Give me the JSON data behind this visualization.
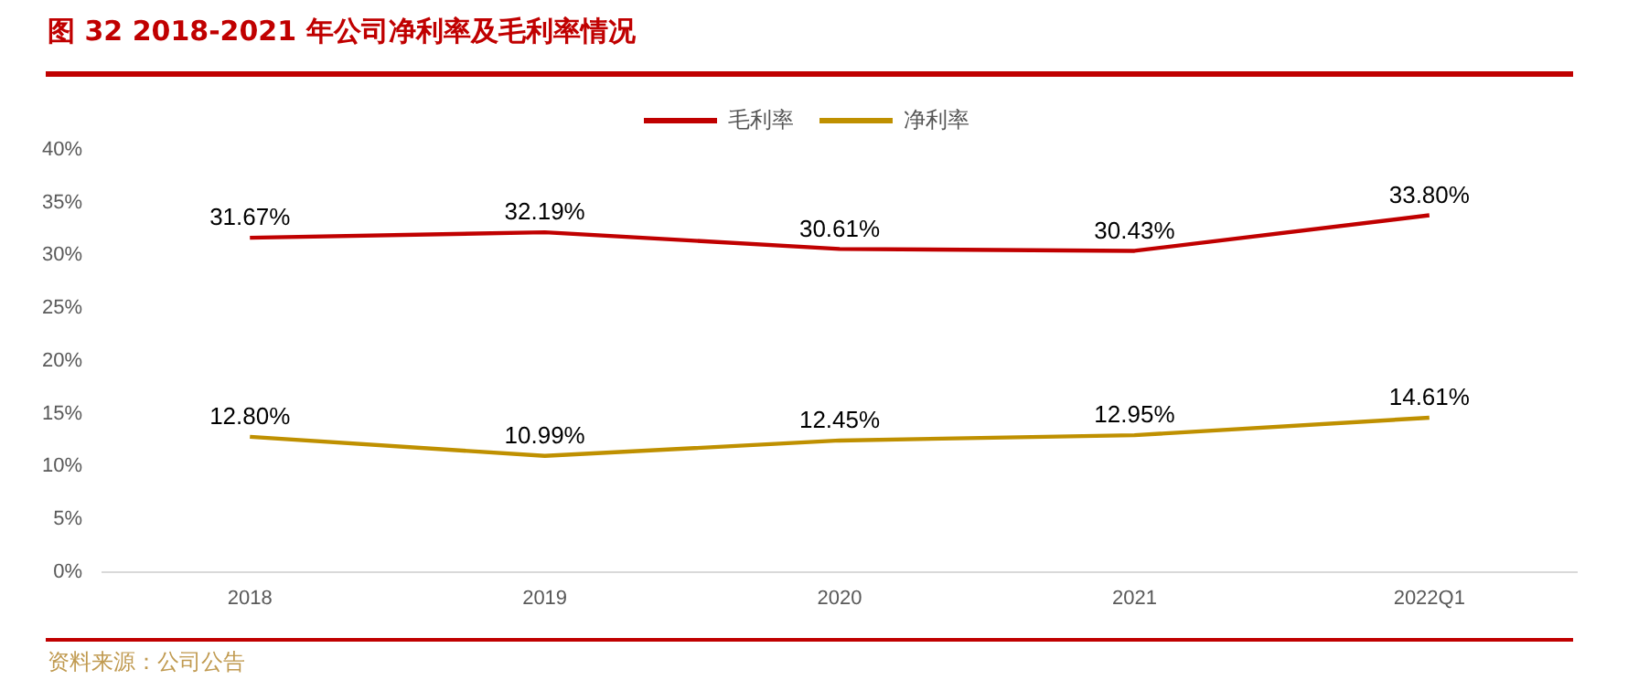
{
  "chart_data": {
    "type": "line",
    "title": "图 32 2018-2021 年公司净利率及毛利率情况",
    "categories": [
      "2018",
      "2019",
      "2020",
      "2021",
      "2022Q1"
    ],
    "series": [
      {
        "name": "毛利率",
        "color": "#c00000",
        "values": [
          31.67,
          32.19,
          30.61,
          30.43,
          33.8
        ],
        "value_labels": [
          "31.67%",
          "32.19%",
          "30.61%",
          "30.43%",
          "33.80%"
        ]
      },
      {
        "name": "净利率",
        "color": "#bf9000",
        "values": [
          12.8,
          10.99,
          12.45,
          12.95,
          14.61
        ],
        "value_labels": [
          "12.80%",
          "10.99%",
          "12.45%",
          "12.95%",
          "14.61%"
        ]
      }
    ],
    "ylim": [
      0,
      40
    ],
    "yticks": [
      {
        "value": 0,
        "label": "0%"
      },
      {
        "value": 5,
        "label": "5%"
      },
      {
        "value": 10,
        "label": "10%"
      },
      {
        "value": 15,
        "label": "15%"
      },
      {
        "value": 20,
        "label": "20%"
      },
      {
        "value": 25,
        "label": "25%"
      },
      {
        "value": 30,
        "label": "30%"
      },
      {
        "value": 35,
        "label": "35%"
      },
      {
        "value": 40,
        "label": "40%"
      }
    ],
    "grid": false,
    "legend": "top",
    "marker": "none",
    "line_style": "solid",
    "annotations": [
      "资料来源：公司公告"
    ]
  }
}
